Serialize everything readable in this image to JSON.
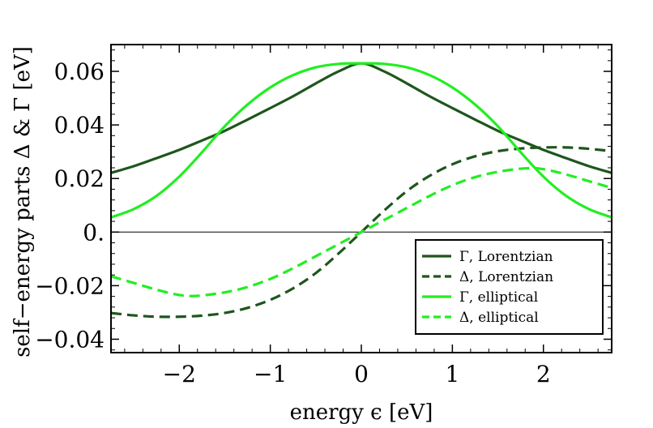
{
  "chart_data": {
    "type": "line",
    "title": "",
    "xlabel": "energy ϵ [eV]",
    "ylabel": "self−energy parts Δ & Γ [eV]",
    "xlim": [
      -2.75,
      2.75
    ],
    "ylim": [
      -0.045,
      0.07
    ],
    "grid": false,
    "x_ticks": [
      {
        "value": -2,
        "label": "−2"
      },
      {
        "value": -1,
        "label": "−1"
      },
      {
        "value": 0,
        "label": "0"
      },
      {
        "value": 1,
        "label": "1"
      },
      {
        "value": 2,
        "label": "2"
      }
    ],
    "y_ticks": [
      {
        "value": 0.06,
        "label": "0.06"
      },
      {
        "value": 0.04,
        "label": "0.04"
      },
      {
        "value": 0.02,
        "label": "0.02"
      },
      {
        "value": 0.0,
        "label": "0."
      },
      {
        "value": -0.02,
        "label": "−0.02"
      },
      {
        "value": -0.04,
        "label": "−0.04"
      }
    ],
    "legend_position": "bottom-right",
    "series": [
      {
        "name": "Γ, Lorentzian",
        "color": "#1e561c",
        "dash": "solid",
        "x": [
          -2.75,
          -2.5,
          -2.25,
          -2.0,
          -1.75,
          -1.5,
          -1.25,
          -1.0,
          -0.75,
          -0.5,
          -0.25,
          0.0,
          0.25,
          0.5,
          0.75,
          1.0,
          1.25,
          1.5,
          1.75,
          2.0,
          2.25,
          2.5,
          2.75
        ],
        "y": [
          0.0221,
          0.0246,
          0.0276,
          0.0307,
          0.0342,
          0.0378,
          0.042,
          0.0463,
          0.0507,
          0.0555,
          0.06,
          0.063,
          0.06,
          0.0555,
          0.0507,
          0.0463,
          0.042,
          0.0378,
          0.0342,
          0.0307,
          0.0276,
          0.0246,
          0.0221
        ]
      },
      {
        "name": "Δ, Lorentzian",
        "color": "#1e561c",
        "dash": "dashed",
        "x": [
          -2.75,
          -2.5,
          -2.25,
          -2.0,
          -1.75,
          -1.5,
          -1.25,
          -1.0,
          -0.75,
          -0.5,
          -0.25,
          0.0,
          0.25,
          0.5,
          0.75,
          1.0,
          1.25,
          1.5,
          1.75,
          2.0,
          2.25,
          2.5,
          2.75
        ],
        "y": [
          -0.0302,
          -0.0311,
          -0.0316,
          -0.0316,
          -0.0312,
          -0.0302,
          -0.0283,
          -0.0253,
          -0.021,
          -0.0153,
          -0.008,
          0.0,
          0.008,
          0.0153,
          0.021,
          0.0253,
          0.0283,
          0.0302,
          0.0312,
          0.0316,
          0.0316,
          0.0311,
          0.0302
        ]
      },
      {
        "name": "Γ, elliptical",
        "color": "#22ee22",
        "dash": "solid",
        "x": [
          -2.75,
          -2.5,
          -2.25,
          -2.0,
          -1.75,
          -1.5,
          -1.25,
          -1.0,
          -0.75,
          -0.5,
          -0.25,
          0.0,
          0.25,
          0.5,
          0.75,
          1.0,
          1.25,
          1.5,
          1.75,
          2.0,
          2.25,
          2.5,
          2.75
        ],
        "y": [
          0.0055,
          0.0086,
          0.0135,
          0.0207,
          0.0298,
          0.0395,
          0.0476,
          0.054,
          0.0586,
          0.0615,
          0.0628,
          0.063,
          0.0628,
          0.0615,
          0.0586,
          0.054,
          0.0476,
          0.0395,
          0.0298,
          0.0207,
          0.0135,
          0.0086,
          0.0055
        ]
      },
      {
        "name": "Δ, elliptical",
        "color": "#22ee22",
        "dash": "dashed",
        "x": [
          -2.75,
          -2.5,
          -2.25,
          -2.0,
          -1.8,
          -1.5,
          -1.25,
          -1.0,
          -0.75,
          -0.5,
          -0.25,
          0.0,
          0.25,
          0.5,
          0.75,
          1.0,
          1.25,
          1.5,
          1.8,
          2.0,
          2.25,
          2.5,
          2.75
        ],
        "y": [
          -0.0165,
          -0.019,
          -0.0215,
          -0.0235,
          -0.0238,
          -0.0225,
          -0.0205,
          -0.0175,
          -0.0135,
          -0.009,
          -0.0045,
          0.0,
          0.0045,
          0.009,
          0.0135,
          0.0175,
          0.0205,
          0.0225,
          0.0238,
          0.0235,
          0.0215,
          0.019,
          0.0165
        ]
      }
    ],
    "reference_lines": [
      {
        "axis": "y",
        "value": 0.0,
        "color": "#000000"
      }
    ]
  }
}
